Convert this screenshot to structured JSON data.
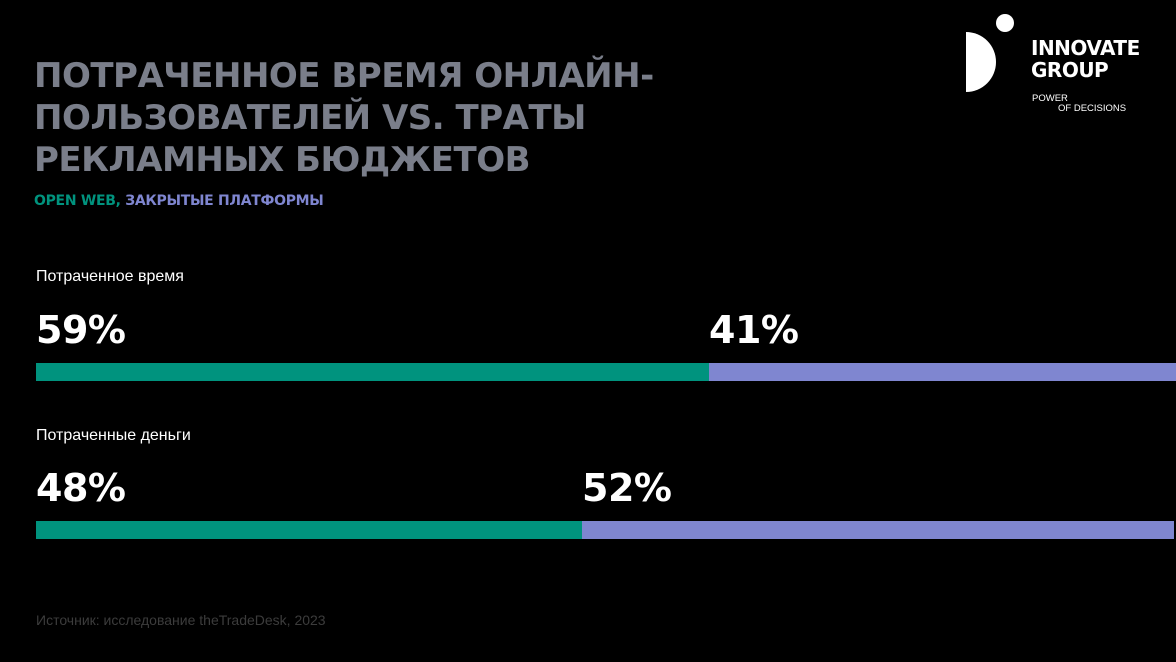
{
  "title": {
    "lines": [
      "ПОТРАЧЕННОЕ ВРЕМЯ ОНЛАЙН-",
      "ПОЛЬЗОВАТЕЛЕЙ VS. ТРАТЫ",
      "РЕКЛАМНЫХ БЮДЖЕТОВ"
    ]
  },
  "legend": {
    "open_web": "OPEN WEB,",
    "closed": " ЗАКРЫТЫЕ ПЛАТФОРМЫ"
  },
  "logo": {
    "line1": "INNOVATE",
    "line2": "GROUP",
    "tagline1": "POWER",
    "tagline2": "OF DECISIONS"
  },
  "colors": {
    "open_web": "#00937e",
    "closed": "#7f86d0",
    "title": "#7a7e8a",
    "background": "#000000"
  },
  "groups": [
    {
      "label": "Потраченное время",
      "open_web_label": "59%",
      "closed_label": "41%"
    },
    {
      "label": "Потраченные деньги",
      "open_web_label": "48%",
      "closed_label": "52%"
    }
  ],
  "source": "Источник: исследование theTradeDesk, 2023",
  "chart_data": {
    "type": "bar",
    "orientation": "horizontal-stacked-100",
    "title": "Потраченное время онлайн-пользователей vs. траты рекламных бюджетов",
    "categories": [
      "Потраченное время",
      "Потраченные деньги"
    ],
    "series": [
      {
        "name": "Open Web",
        "color": "#00937e",
        "values": [
          59,
          48
        ]
      },
      {
        "name": "Закрытые платформы",
        "color": "#7f86d0",
        "values": [
          41,
          52
        ]
      }
    ],
    "unit": "%",
    "xlim": [
      0,
      100
    ],
    "grid": false,
    "legend_position": "subtitle",
    "source": "Источник: исследование theTradeDesk, 2023"
  }
}
